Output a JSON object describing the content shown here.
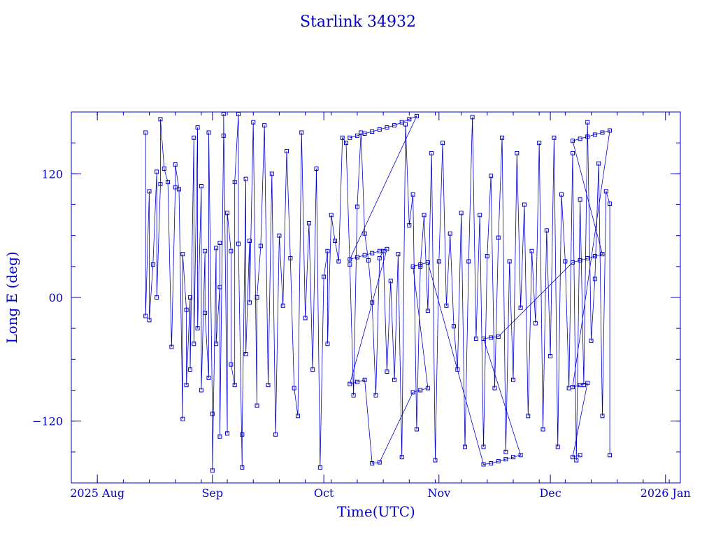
{
  "chart_data": {
    "type": "scatter",
    "title": "Starlink 34932",
    "xlabel": "Time(UTC)",
    "ylabel": "Long E (deg)",
    "x_range": [
      "2025-07-25",
      "2026-01-05"
    ],
    "ylim": [
      -180,
      180
    ],
    "x_ticks": [
      {
        "date": "2025-08-01",
        "label": "2025 Aug"
      },
      {
        "date": "2025-09-01",
        "label": "Sep"
      },
      {
        "date": "2025-10-01",
        "label": "Oct"
      },
      {
        "date": "2025-11-01",
        "label": "Nov"
      },
      {
        "date": "2025-12-01",
        "label": "Dec"
      },
      {
        "date": "2026-01-01",
        "label": "2026 Jan"
      }
    ],
    "y_ticks": [
      {
        "value": 120,
        "label": "120"
      },
      {
        "value": 0,
        "label": "00"
      },
      {
        "value": -120,
        "label": "−120"
      }
    ],
    "grid": false,
    "legend": "none",
    "marker": "open-square",
    "color": "#0000cc",
    "series": [
      {
        "points": [
          [
            "2025-08-14",
            160
          ],
          [
            "2025-08-14",
            -18
          ],
          [
            "2025-08-15",
            103
          ],
          [
            "2025-08-15",
            -22
          ],
          [
            "2025-08-16",
            32
          ],
          [
            "2025-08-17",
            122
          ],
          [
            "2025-08-17",
            0
          ],
          [
            "2025-08-18",
            110
          ],
          [
            "2025-08-18",
            173
          ],
          [
            "2025-08-19",
            125
          ],
          [
            "2025-08-20",
            112
          ],
          [
            "2025-08-21",
            -48
          ],
          [
            "2025-08-22",
            107
          ],
          [
            "2025-08-22",
            129
          ],
          [
            "2025-08-23",
            105
          ],
          [
            "2025-08-24",
            -118
          ],
          [
            "2025-08-24",
            42
          ],
          [
            "2025-08-25",
            -12
          ],
          [
            "2025-08-25",
            -85
          ],
          [
            "2025-08-26",
            0
          ],
          [
            "2025-08-26",
            -70
          ],
          [
            "2025-08-27",
            155
          ],
          [
            "2025-08-27",
            -45
          ],
          [
            "2025-08-28",
            165
          ],
          [
            "2025-08-28",
            -30
          ],
          [
            "2025-08-29",
            108
          ],
          [
            "2025-08-29",
            -90
          ],
          [
            "2025-08-30",
            45
          ],
          [
            "2025-08-30",
            -15
          ],
          [
            "2025-08-31",
            -78
          ],
          [
            "2025-08-31",
            160
          ],
          [
            "2025-09-01",
            -113
          ],
          [
            "2025-09-01",
            -168
          ],
          [
            "2025-09-02",
            48
          ],
          [
            "2025-09-02",
            -45
          ],
          [
            "2025-09-03",
            10
          ],
          [
            "2025-09-03",
            53
          ],
          [
            "2025-09-03",
            -135
          ],
          [
            "2025-09-04",
            157
          ],
          [
            "2025-09-04",
            178
          ],
          [
            "2025-09-05",
            -132
          ],
          [
            "2025-09-05",
            82
          ],
          [
            "2025-09-06",
            45
          ],
          [
            "2025-09-06",
            -65
          ],
          [
            "2025-09-07",
            -85
          ],
          [
            "2025-09-07",
            112
          ],
          [
            "2025-09-08",
            178
          ],
          [
            "2025-09-08",
            52
          ],
          [
            "2025-09-09",
            -165
          ],
          [
            "2025-09-09",
            -133
          ],
          [
            "2025-09-10",
            115
          ],
          [
            "2025-09-10",
            -55
          ],
          [
            "2025-09-11",
            55
          ],
          [
            "2025-09-11",
            -5
          ],
          [
            "2025-09-12",
            170
          ],
          [
            "2025-09-13",
            -105
          ],
          [
            "2025-09-13",
            0
          ],
          [
            "2025-09-14",
            50
          ],
          [
            "2025-09-15",
            167
          ],
          [
            "2025-09-16",
            -85
          ],
          [
            "2025-09-17",
            120
          ],
          [
            "2025-09-18",
            -133
          ],
          [
            "2025-09-19",
            60
          ],
          [
            "2025-09-20",
            -8
          ],
          [
            "2025-09-21",
            142
          ],
          [
            "2025-09-22",
            38
          ],
          [
            "2025-09-23",
            -88
          ],
          [
            "2025-09-24",
            -115
          ],
          [
            "2025-09-25",
            160
          ],
          [
            "2025-09-26",
            -20
          ],
          [
            "2025-09-27",
            72
          ],
          [
            "2025-09-28",
            -70
          ],
          [
            "2025-09-29",
            125
          ],
          [
            "2025-09-30",
            -165
          ],
          [
            "2025-10-01",
            20
          ],
          [
            "2025-10-02",
            45
          ],
          [
            "2025-10-02",
            -45
          ],
          [
            "2025-10-03",
            80
          ],
          [
            "2025-10-04",
            55
          ],
          [
            "2025-10-05",
            35
          ],
          [
            "2025-10-06",
            155
          ],
          [
            "2025-10-07",
            150
          ],
          [
            "2025-10-08",
            32
          ],
          [
            "2025-10-09",
            -95
          ],
          [
            "2025-10-10",
            88
          ],
          [
            "2025-10-11",
            160
          ],
          [
            "2025-10-12",
            62
          ],
          [
            "2025-10-13",
            36
          ],
          [
            "2025-10-14",
            -5
          ],
          [
            "2025-10-15",
            -95
          ],
          [
            "2025-10-16",
            38
          ],
          [
            "2025-10-17",
            45
          ],
          [
            "2025-10-18",
            -72
          ],
          [
            "2025-10-19",
            16
          ],
          [
            "2025-10-20",
            -80
          ],
          [
            "2025-10-21",
            42
          ],
          [
            "2025-10-22",
            -155
          ],
          [
            "2025-10-23",
            168
          ],
          [
            "2025-10-24",
            70
          ],
          [
            "2025-10-25",
            100
          ],
          [
            "2025-10-26",
            -128
          ],
          [
            "2025-10-27",
            30
          ],
          [
            "2025-10-28",
            80
          ],
          [
            "2025-10-29",
            -13
          ],
          [
            "2025-10-30",
            140
          ],
          [
            "2025-10-31",
            -158
          ],
          [
            "2025-11-01",
            35
          ],
          [
            "2025-11-02",
            150
          ],
          [
            "2025-11-03",
            -8
          ],
          [
            "2025-11-04",
            62
          ],
          [
            "2025-11-05",
            -28
          ],
          [
            "2025-11-06",
            -70
          ],
          [
            "2025-11-07",
            82
          ],
          [
            "2025-11-08",
            -145
          ],
          [
            "2025-11-09",
            35
          ],
          [
            "2025-11-10",
            175
          ],
          [
            "2025-11-11",
            -40
          ],
          [
            "2025-11-12",
            80
          ],
          [
            "2025-11-13",
            -145
          ],
          [
            "2025-11-14",
            40
          ],
          [
            "2025-11-15",
            118
          ],
          [
            "2025-11-16",
            -88
          ],
          [
            "2025-11-17",
            58
          ],
          [
            "2025-11-18",
            155
          ],
          [
            "2025-11-19",
            -150
          ],
          [
            "2025-11-20",
            35
          ],
          [
            "2025-11-21",
            -80
          ],
          [
            "2025-11-22",
            140
          ],
          [
            "2025-11-23",
            -10
          ],
          [
            "2025-11-24",
            90
          ],
          [
            "2025-11-25",
            -115
          ],
          [
            "2025-11-26",
            45
          ],
          [
            "2025-11-27",
            -25
          ],
          [
            "2025-11-28",
            150
          ],
          [
            "2025-11-29",
            -128
          ],
          [
            "2025-11-30",
            65
          ],
          [
            "2025-12-01",
            -57
          ],
          [
            "2025-12-02",
            155
          ],
          [
            "2025-12-03",
            -145
          ],
          [
            "2025-12-04",
            100
          ],
          [
            "2025-12-05",
            35
          ],
          [
            "2025-12-06",
            -88
          ],
          [
            "2025-12-07",
            140
          ],
          [
            "2025-12-08",
            -158
          ],
          [
            "2025-12-09",
            95
          ],
          [
            "2025-12-10",
            -85
          ],
          [
            "2025-12-11",
            170
          ],
          [
            "2025-12-12",
            -42
          ],
          [
            "2025-12-13",
            18
          ],
          [
            "2025-12-14",
            130
          ],
          [
            "2025-12-15",
            -115
          ],
          [
            "2025-12-16",
            103
          ],
          [
            "2025-12-17",
            91
          ],
          [
            "2025-12-17",
            -153
          ]
        ]
      },
      {
        "points": [
          [
            "2025-10-08",
            155
          ],
          [
            "2025-10-10",
            157
          ],
          [
            "2025-10-12",
            159
          ],
          [
            "2025-10-14",
            161
          ],
          [
            "2025-10-16",
            163
          ],
          [
            "2025-10-18",
            165
          ],
          [
            "2025-10-20",
            167
          ],
          [
            "2025-10-22",
            170
          ],
          [
            "2025-10-24",
            173
          ],
          [
            "2025-10-26",
            176
          ],
          [
            "2025-10-08",
            37
          ],
          [
            "2025-10-10",
            39
          ],
          [
            "2025-10-12",
            41
          ],
          [
            "2025-10-14",
            43
          ],
          [
            "2025-10-16",
            45
          ],
          [
            "2025-10-18",
            47
          ],
          [
            "2025-10-08",
            -84
          ],
          [
            "2025-10-10",
            -82
          ],
          [
            "2025-10-12",
            -80
          ],
          [
            "2025-10-14",
            -161
          ],
          [
            "2025-10-16",
            -160
          ],
          [
            "2025-10-25",
            -92
          ],
          [
            "2025-10-27",
            -90
          ],
          [
            "2025-10-29",
            -88
          ],
          [
            "2025-10-25",
            30
          ],
          [
            "2025-10-27",
            32
          ],
          [
            "2025-10-29",
            34
          ],
          [
            "2025-11-13",
            -162
          ],
          [
            "2025-11-15",
            -161
          ],
          [
            "2025-11-17",
            -159
          ],
          [
            "2025-11-19",
            -157
          ],
          [
            "2025-11-21",
            -155
          ],
          [
            "2025-11-23",
            -153
          ],
          [
            "2025-11-13",
            -40
          ],
          [
            "2025-11-15",
            -39
          ],
          [
            "2025-11-17",
            -38
          ],
          [
            "2025-12-07",
            34
          ],
          [
            "2025-12-09",
            36
          ],
          [
            "2025-12-11",
            38
          ],
          [
            "2025-12-13",
            40
          ],
          [
            "2025-12-15",
            42
          ],
          [
            "2025-12-07",
            152
          ],
          [
            "2025-12-09",
            154
          ],
          [
            "2025-12-11",
            156
          ],
          [
            "2025-12-13",
            158
          ],
          [
            "2025-12-15",
            160
          ],
          [
            "2025-12-17",
            162
          ],
          [
            "2025-12-07",
            -87
          ],
          [
            "2025-12-09",
            -85
          ],
          [
            "2025-12-11",
            -83
          ],
          [
            "2025-12-07",
            -155
          ],
          [
            "2025-12-09",
            -153
          ]
        ]
      }
    ]
  }
}
